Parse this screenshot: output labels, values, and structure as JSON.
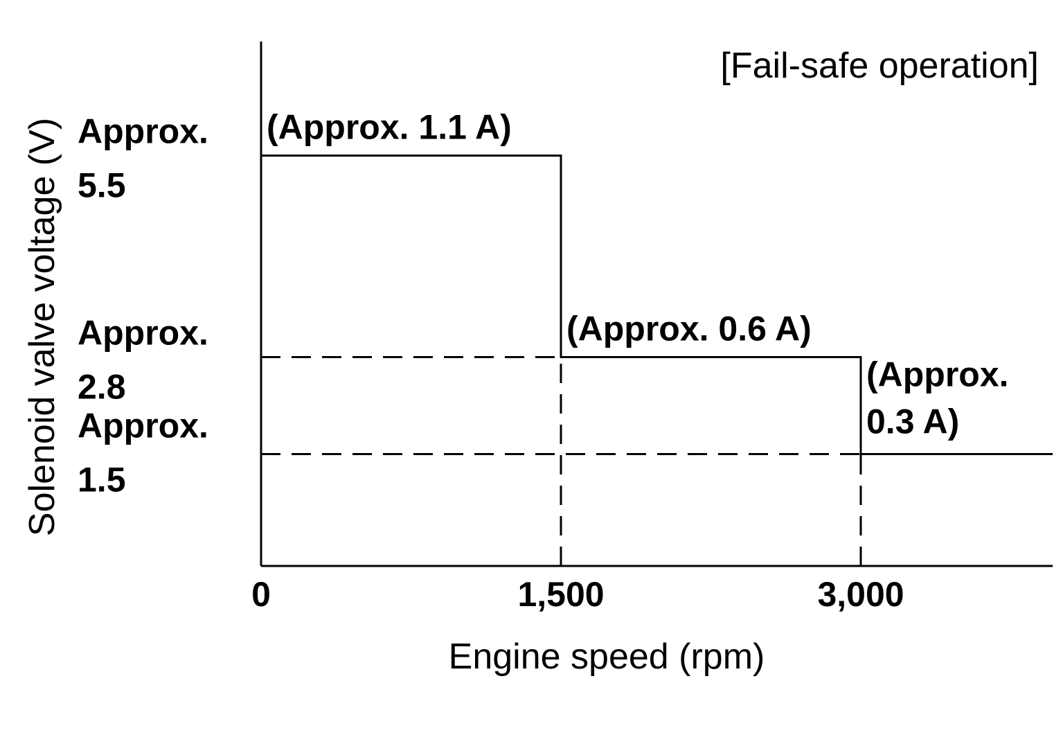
{
  "chart_data": {
    "type": "line",
    "title": "[Fail-safe operation]",
    "xlabel": "Engine speed (rpm)",
    "ylabel": "Solenoid valve voltage (V)",
    "xlim": [
      0,
      3960
    ],
    "ylim": [
      0,
      7.0
    ],
    "grid": false,
    "x_ticks": [
      {
        "value": 0,
        "label": "0"
      },
      {
        "value": 1500,
        "label": "1,500"
      },
      {
        "value": 3000,
        "label": "3,000"
      }
    ],
    "y_ticks": [
      {
        "value": 5.5,
        "line1": "Approx.",
        "line2": "5.5"
      },
      {
        "value": 2.8,
        "line1": "Approx.",
        "line2": "2.8"
      },
      {
        "value": 1.5,
        "line1": "Approx.",
        "line2": "1.5"
      }
    ],
    "series": [
      {
        "step_points": [
          [
            0,
            5.5
          ],
          [
            1500,
            5.5
          ],
          [
            1500,
            2.8
          ],
          [
            3000,
            2.8
          ],
          [
            3000,
            1.5
          ],
          [
            3960,
            1.5
          ]
        ]
      }
    ],
    "reference_lines": [
      {
        "from": [
          0,
          2.8
        ],
        "to": [
          1500,
          2.8
        ],
        "style": "dashed"
      },
      {
        "from": [
          0,
          1.5
        ],
        "to": [
          3000,
          1.5
        ],
        "style": "dashed"
      },
      {
        "from": [
          1500,
          0
        ],
        "to": [
          1500,
          2.8
        ],
        "style": "dashed"
      },
      {
        "from": [
          3000,
          0
        ],
        "to": [
          3000,
          1.5
        ],
        "style": "dashed"
      }
    ],
    "annotations": [
      {
        "lines": [
          "(Approx. 1.1 A)"
        ],
        "x": 0,
        "y": 5.5
      },
      {
        "lines": [
          "(Approx. 0.6 A)"
        ],
        "x": 1500,
        "y": 2.8
      },
      {
        "lines": [
          "(Approx.",
          "0.3 A)"
        ],
        "x": 3000,
        "y": 1.5
      }
    ]
  }
}
